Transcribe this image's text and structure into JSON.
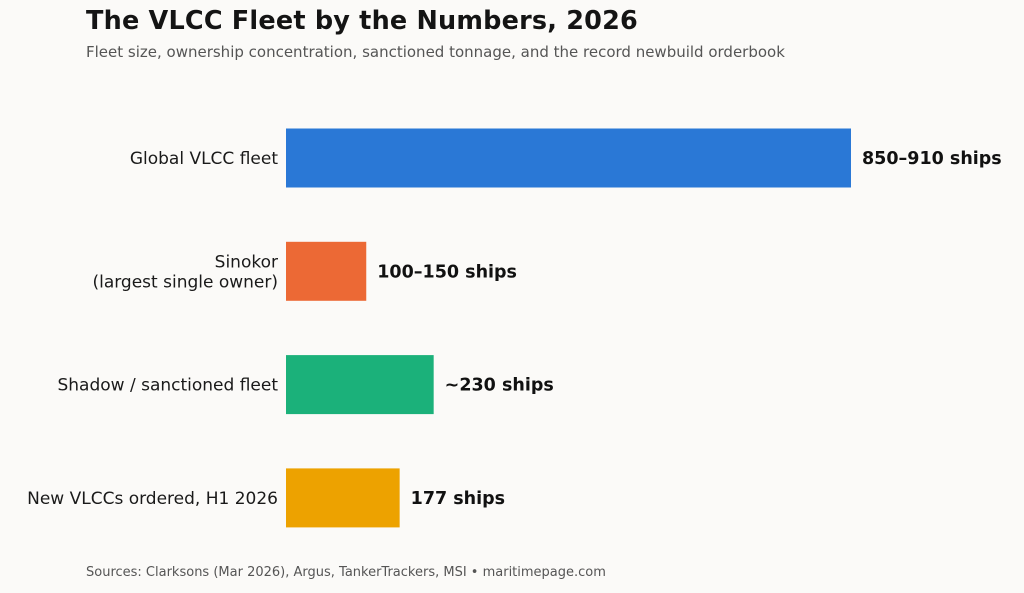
{
  "header": {
    "title": "The VLCC Fleet by the Numbers, 2026",
    "subtitle": "Fleet size, ownership concentration, sanctioned tonnage, and the record newbuild orderbook"
  },
  "footer": {
    "sources": "Sources: Clarksons (Mar 2026), Argus, TankerTrackers, MSI • maritimepage.com"
  },
  "chart_data": {
    "type": "bar",
    "orientation": "horizontal",
    "title": "The VLCC Fleet by the Numbers, 2026",
    "subtitle": "Fleet size, ownership concentration, sanctioned tonnage, and the record newbuild orderbook",
    "xlabel": "",
    "ylabel": "",
    "grid": false,
    "categories": [
      [
        "Global VLCC fleet"
      ],
      [
        "Sinokor",
        "(largest single owner)"
      ],
      [
        "Shadow / sanctioned fleet"
      ],
      [
        "New VLCCs ordered, H1 2026"
      ]
    ],
    "values": [
      880,
      125,
      230,
      177
    ],
    "value_labels": [
      "850–910 ships",
      "100–150 ships",
      "~230 ships",
      "177 ships"
    ],
    "colors": [
      "#2a78d6",
      "#ec6935",
      "#1bb17a",
      "#eda200"
    ],
    "xlim": [
      0,
      880
    ]
  }
}
